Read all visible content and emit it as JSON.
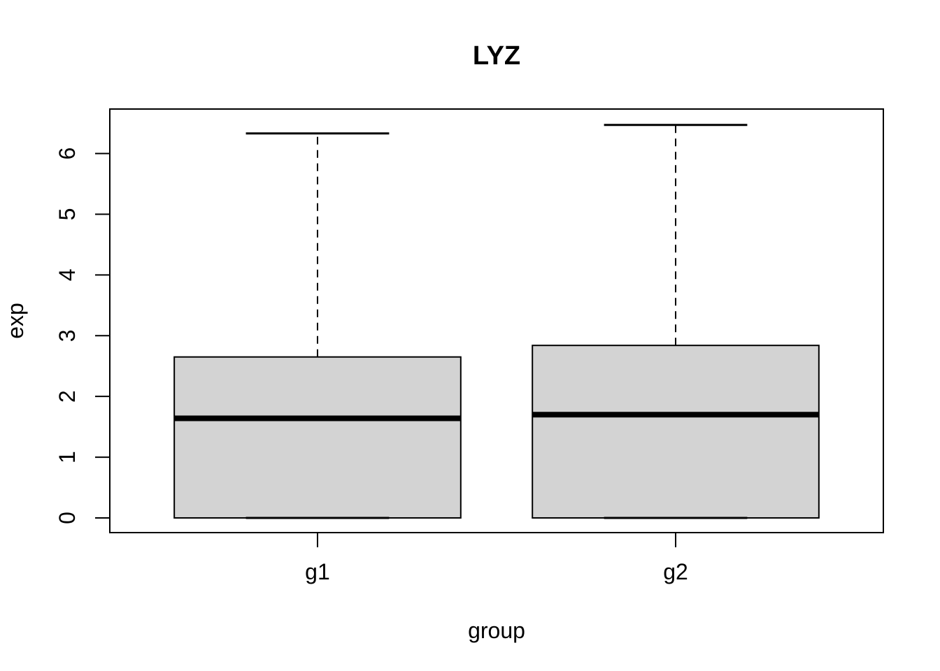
{
  "chart_data": {
    "type": "boxplot",
    "title": "LYZ",
    "xlabel": "group",
    "ylabel": "exp",
    "categories": [
      "g1",
      "g2"
    ],
    "series": [
      {
        "name": "g1",
        "min": 0,
        "q1": 0,
        "median": 1.64,
        "q3": 2.65,
        "max": 6.33
      },
      {
        "name": "g2",
        "min": 0,
        "q1": 0,
        "median": 1.7,
        "q3": 2.84,
        "max": 6.47
      }
    ],
    "y_ticks": [
      0,
      1,
      2,
      3,
      4,
      5,
      6
    ],
    "ylim": [
      -0.242,
      6.732
    ],
    "xlim": [
      0.42,
      2.58
    ],
    "grid": false,
    "legend": false,
    "orientation": "vertical",
    "box_fill": "#d3d3d3",
    "stroke_color": "#000000",
    "background": "#ffffff"
  }
}
